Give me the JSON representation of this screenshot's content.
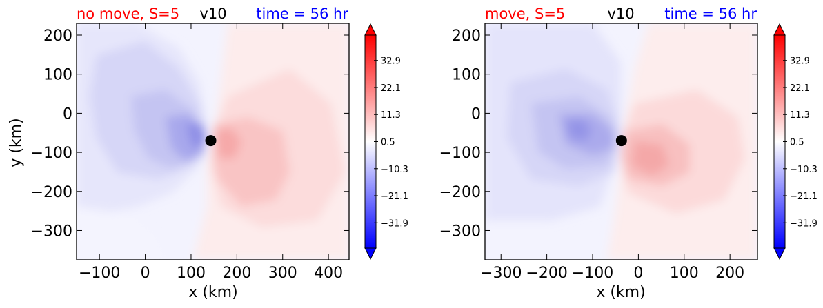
{
  "chart_data": [
    {
      "type": "heatmap",
      "title_left": "no move, S=5",
      "title_center": "v10",
      "title_right": "time = 56 hr",
      "xlabel": "x (km)",
      "ylabel": "y (km)",
      "xlim": [
        -150,
        445
      ],
      "ylim": [
        -375,
        230
      ],
      "xticks": [
        -100,
        0,
        100,
        200,
        300,
        400
      ],
      "yticks": [
        200,
        100,
        0,
        -100,
        -200,
        -300
      ],
      "center_marker": {
        "x": 143,
        "y": -70
      },
      "colorbar": {
        "vmin": -42,
        "vmax": 43,
        "tick_values": [
          32.9,
          22.1,
          11.3,
          0.5,
          -10.3,
          -21.1,
          -31.9
        ],
        "tick_labels": [
          "32.9",
          "22.1",
          "11.3",
          "0.5",
          "−10.3",
          "−21.1",
          "−31.9"
        ],
        "extend": "both",
        "cmap": "bwr"
      }
    },
    {
      "type": "heatmap",
      "title_left": "move, S=5",
      "title_center": "v10",
      "title_right": "time = 56 hr",
      "xlabel": "x (km)",
      "ylabel": "",
      "xlim": [
        -335,
        260
      ],
      "ylim": [
        -375,
        230
      ],
      "xticks": [
        -300,
        -200,
        -100,
        0,
        100,
        200
      ],
      "yticks": [
        200,
        100,
        0,
        -100,
        -200,
        -300
      ],
      "center_marker": {
        "x": -37,
        "y": -70
      },
      "colorbar": {
        "vmin": -42,
        "vmax": 43,
        "tick_values": [
          32.9,
          22.1,
          11.3,
          0.5,
          -10.3,
          -21.1,
          -31.9
        ],
        "tick_labels": [
          "32.9",
          "22.1",
          "11.3",
          "0.5",
          "−10.3",
          "−21.1",
          "−31.9"
        ],
        "extend": "both",
        "cmap": "bwr"
      }
    }
  ],
  "colors": {
    "title_left": "#ff0000",
    "title_center": "#000000",
    "title_right": "#0000ff",
    "marker": "#000000"
  }
}
